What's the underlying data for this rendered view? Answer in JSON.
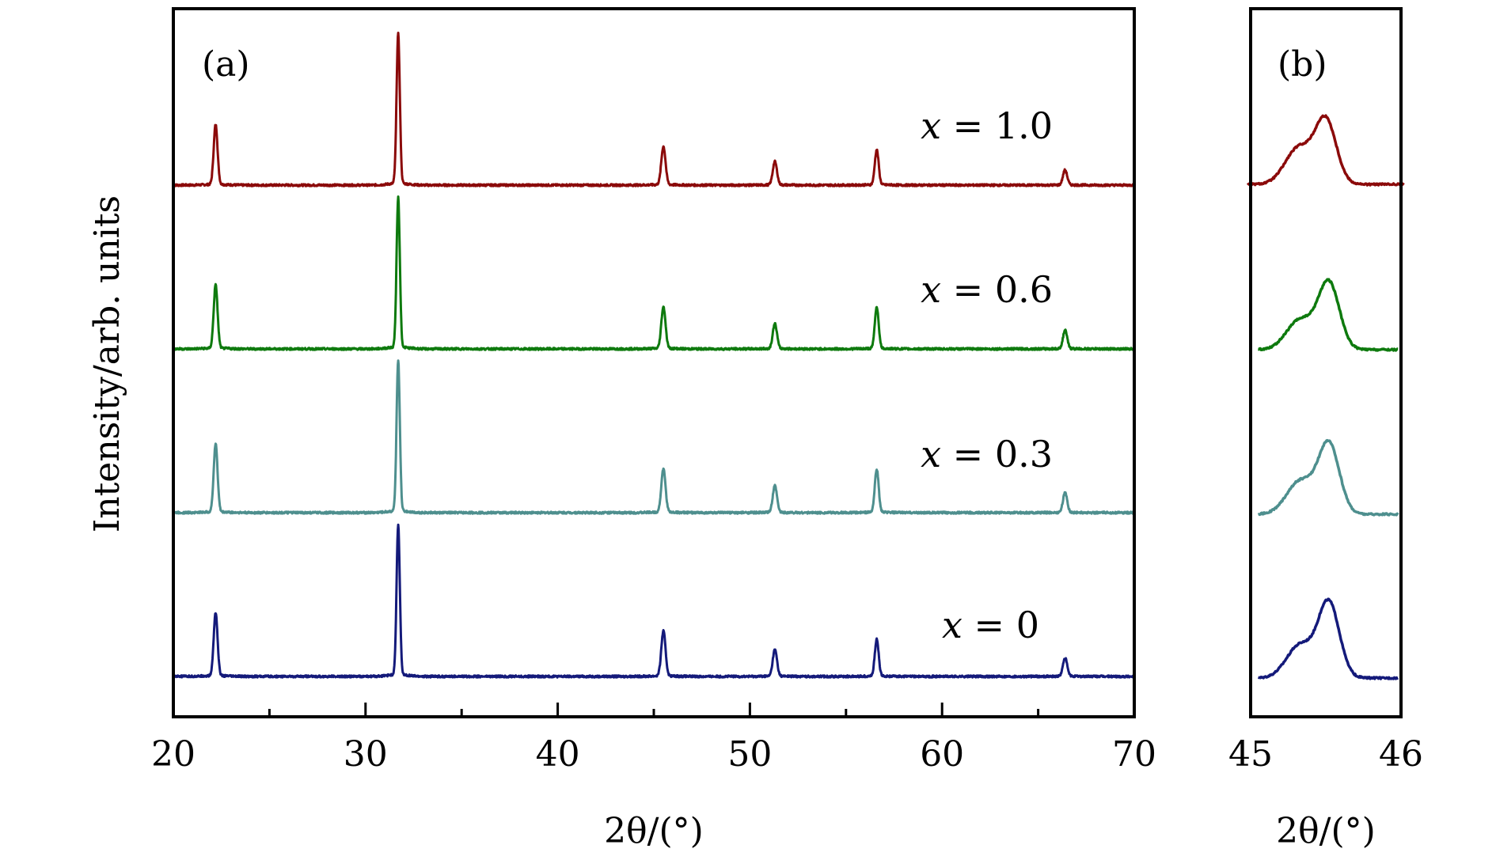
{
  "chart_data": [
    {
      "panel": "(a)",
      "type": "line",
      "title": "",
      "xlabel": "2θ/(°)",
      "ylabel": "Intensity/arb. units",
      "xlim": [
        20,
        70
      ],
      "xticks": [
        20,
        30,
        40,
        50,
        60,
        70
      ],
      "xticks_minor": [
        25,
        35,
        45,
        55,
        65
      ],
      "y_ticks_shown": false,
      "grid": false,
      "peak_positions": [
        22.2,
        31.7,
        45.5,
        51.3,
        56.6,
        66.4
      ],
      "series": [
        {
          "name": "x = 1.0",
          "var": "x",
          "value": "1.0",
          "color": "#8B0A0A",
          "offset": 3,
          "peak_heights": [
            0.36,
            0.9,
            0.23,
            0.14,
            0.21,
            0.09
          ]
        },
        {
          "name": "x = 0.6",
          "var": "x",
          "value": "0.6",
          "color": "#0E7A0E",
          "offset": 2,
          "peak_heights": [
            0.38,
            0.9,
            0.25,
            0.15,
            0.25,
            0.11
          ]
        },
        {
          "name": "x = 0.3",
          "var": "x",
          "value": "0.3",
          "color": "#4E8F8E",
          "offset": 1,
          "peak_heights": [
            0.41,
            0.9,
            0.26,
            0.16,
            0.26,
            0.12
          ]
        },
        {
          "name": "x = 0",
          "var": "x",
          "value": "0",
          "color": "#141A7A",
          "offset": 0,
          "peak_heights": [
            0.38,
            0.9,
            0.27,
            0.16,
            0.22,
            0.11
          ]
        }
      ]
    },
    {
      "panel": "(b)",
      "type": "line",
      "title": "",
      "xlabel": "2θ/(°)",
      "ylabel": "",
      "xlim": [
        45,
        46
      ],
      "xticks": [
        45,
        46
      ],
      "y_ticks_shown": false,
      "grid": false,
      "description_values": {
        "main_peak": 45.52,
        "shoulder": 45.35
      },
      "series": [
        {
          "name": "x = 1.0",
          "color": "#8B0A0A",
          "offset": 3
        },
        {
          "name": "x = 0.6",
          "color": "#0E7A0E",
          "offset": 2
        },
        {
          "name": "x = 0.3",
          "color": "#4E8F8E",
          "offset": 1
        },
        {
          "name": "x = 0",
          "color": "#141A7A",
          "offset": 0
        }
      ]
    }
  ]
}
